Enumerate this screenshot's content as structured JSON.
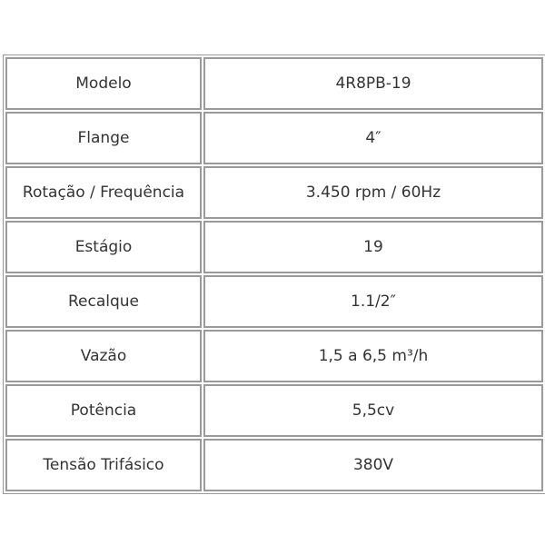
{
  "rows": [
    {
      "label": "Modelo",
      "value": "4R8PB-19"
    },
    {
      "label": "Flange",
      "value": "4″"
    },
    {
      "label": "Rotação / Frequência",
      "value": "3.450 rpm / 60Hz"
    },
    {
      "label": "Estágio",
      "value": "19"
    },
    {
      "label": "Recalque",
      "value": "1.1/2″"
    },
    {
      "label": "Vazão",
      "value": "1,5 a 6,5 m³/h"
    },
    {
      "label": "Potência",
      "value": "5,5cv"
    },
    {
      "label": "Tensão Trifásico",
      "value": "380V"
    }
  ]
}
